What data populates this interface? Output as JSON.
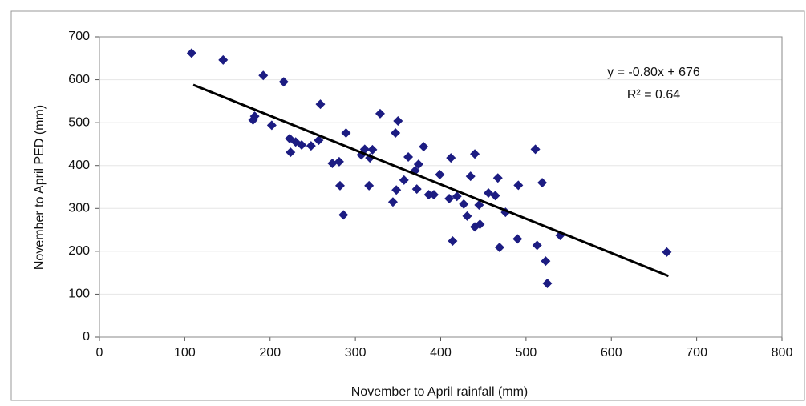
{
  "chart_data": {
    "type": "scatter",
    "x_label": "November to April rainfall (mm)",
    "y_label": "November to April PED (mm)",
    "x": [
      108,
      145,
      192,
      216,
      180,
      182,
      202,
      259,
      223,
      230,
      237,
      248,
      224,
      257,
      289,
      273,
      281,
      282,
      286,
      329,
      350,
      347,
      307,
      311,
      317,
      320,
      316,
      344,
      348,
      357,
      362,
      380,
      374,
      370,
      372,
      386,
      392,
      399,
      412,
      410,
      419,
      414,
      427,
      431,
      435,
      440,
      440,
      446,
      445,
      456,
      464,
      467,
      469,
      476,
      490,
      491,
      511,
      513,
      519,
      523,
      525,
      540,
      665
    ],
    "values": [
      662,
      646,
      610,
      595,
      506,
      515,
      494,
      543,
      463,
      455,
      448,
      446,
      431,
      459,
      476,
      405,
      409,
      353,
      285,
      521,
      504,
      476,
      425,
      438,
      418,
      437,
      353,
      315,
      343,
      366,
      420,
      444,
      403,
      388,
      345,
      332,
      332,
      379,
      418,
      323,
      328,
      224,
      310,
      282,
      375,
      427,
      257,
      263,
      308,
      336,
      330,
      371,
      209,
      291,
      229,
      354,
      438,
      214,
      360,
      177,
      125,
      237,
      198
    ],
    "color": "#1c1c82",
    "trendline": {
      "x": [
        110,
        667
      ],
      "slope": -0.8,
      "intercept": 676,
      "equation": "y = -0.80x + 676",
      "r2_label": "R² = 0.64"
    },
    "xlim": [
      0,
      800
    ],
    "xticks": [
      0,
      100,
      200,
      300,
      400,
      500,
      600,
      700,
      800
    ],
    "ylim": [
      0,
      700
    ],
    "yticks": [
      0,
      100,
      200,
      300,
      400,
      500,
      600,
      700
    ],
    "grid": true
  }
}
